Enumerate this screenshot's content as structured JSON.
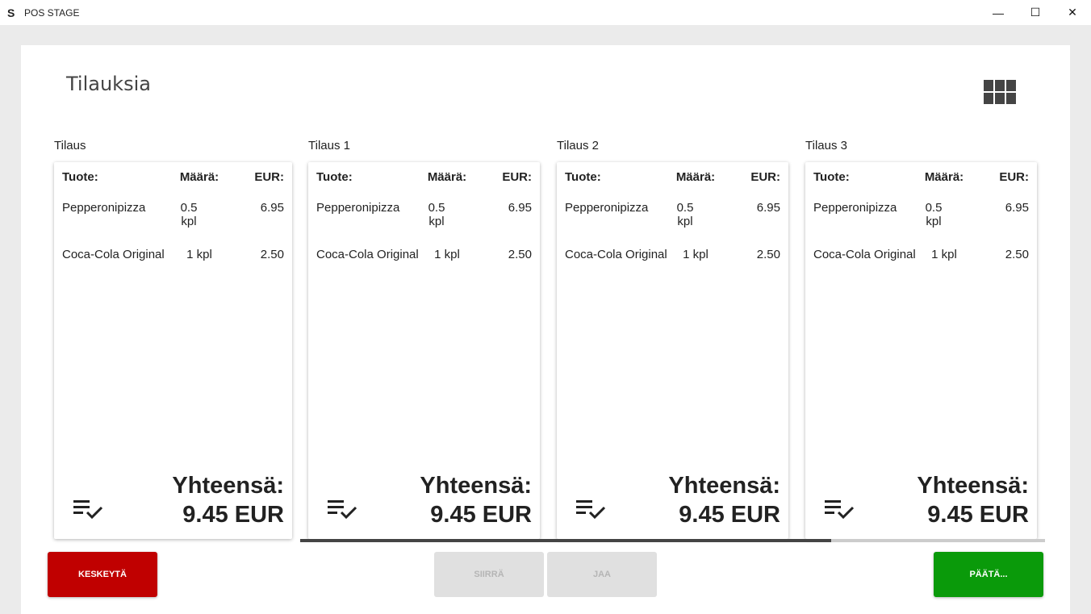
{
  "window": {
    "title": "POS STAGE",
    "minimize": "—",
    "maximize": "☐",
    "close": "✕"
  },
  "page": {
    "title": "Tilauksia"
  },
  "orders": [
    {
      "label": "Tilaus",
      "headers": [
        "Tuote:",
        "Määrä:",
        "EUR:"
      ],
      "items": [
        {
          "name": "Pepperonipizza",
          "qty": "0.5 kpl",
          "price": "6.95"
        },
        {
          "name": "Coca-Cola Original",
          "qty": "1 kpl",
          "price": "2.50"
        }
      ],
      "total_label": "Yhteensä:",
      "total": "9.45 EUR"
    },
    {
      "label": "Tilaus 1",
      "headers": [
        "Tuote:",
        "Määrä:",
        "EUR:"
      ],
      "items": [
        {
          "name": "Pepperonipizza",
          "qty": "0.5 kpl",
          "price": "6.95"
        },
        {
          "name": "Coca-Cola Original",
          "qty": "1 kpl",
          "price": "2.50"
        }
      ],
      "total_label": "Yhteensä:",
      "total": "9.45 EUR"
    },
    {
      "label": "Tilaus 2",
      "headers": [
        "Tuote:",
        "Määrä:",
        "EUR:"
      ],
      "items": [
        {
          "name": "Pepperonipizza",
          "qty": "0.5 kpl",
          "price": "6.95"
        },
        {
          "name": "Coca-Cola Original",
          "qty": "1 kpl",
          "price": "2.50"
        }
      ],
      "total_label": "Yhteensä:",
      "total": "9.45 EUR"
    },
    {
      "label": "Tilaus 3",
      "headers": [
        "Tuote:",
        "Määrä:",
        "EUR:"
      ],
      "items": [
        {
          "name": "Pepperonipizza",
          "qty": "0.5 kpl",
          "price": "6.95"
        },
        {
          "name": "Coca-Cola Original",
          "qty": "1 kpl",
          "price": "2.50"
        }
      ],
      "total_label": "Yhteensä:",
      "total": "9.45 EUR"
    }
  ],
  "buttons": {
    "cancel": "KESKEYTÄ",
    "move": "SIIRRÄ",
    "split": "JAA",
    "finish": "PÄÄTÄ..."
  },
  "colors": {
    "cancel": "#c00000",
    "finish": "#0a9a0a",
    "disabled": "#e0e0e0"
  }
}
